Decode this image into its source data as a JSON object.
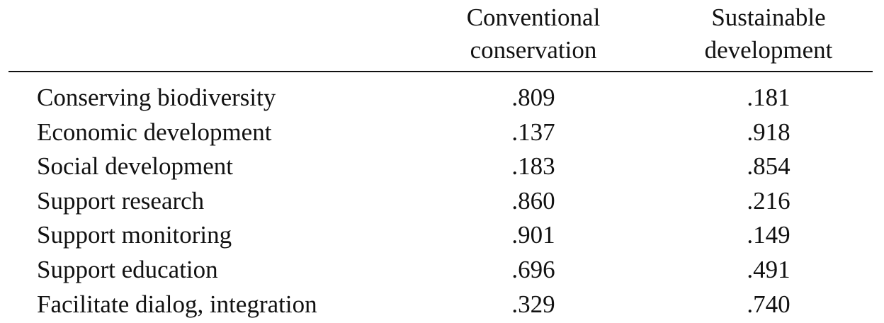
{
  "table": {
    "columns": [
      {
        "line1": "Conventional",
        "line2": "conservation"
      },
      {
        "line1": "Sustainable",
        "line2": "development"
      }
    ],
    "rows": [
      {
        "label": "Conserving biodiversity",
        "conventional": ".809",
        "sustainable": ".181"
      },
      {
        "label": "Economic development",
        "conventional": ".137",
        "sustainable": ".918"
      },
      {
        "label": "Social development",
        "conventional": ".183",
        "sustainable": ".854"
      },
      {
        "label": "Support research",
        "conventional": ".860",
        "sustainable": ".216"
      },
      {
        "label": "Support monitoring",
        "conventional": ".901",
        "sustainable": ".149"
      },
      {
        "label": "Support education",
        "conventional": ".696",
        "sustainable": ".491"
      },
      {
        "label": "Facilitate dialog, integration",
        "conventional": ".329",
        "sustainable": ".740"
      }
    ]
  }
}
